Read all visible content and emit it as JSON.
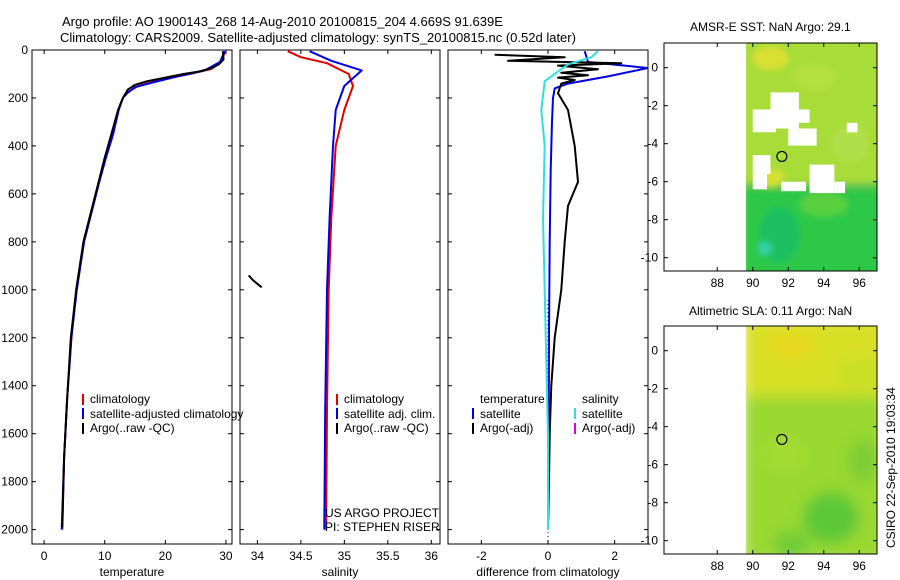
{
  "header": {
    "line1": "Argo profile: AO 1900143_268 14-Aug-2010 20100815_204 4.669S 91.639E",
    "line2": "Climatology: CARS2009. Satellite-adjusted climatology: synTS_20100815.nc (0.52d later)"
  },
  "colors": {
    "climatology": "#e00000",
    "satellite": "#0000e0",
    "argo": "#000000",
    "sat_salinity": "#30e0e0",
    "argo_salinity": "#e000e0"
  },
  "chart_data": [
    {
      "type": "line",
      "name": "temperature-profile",
      "xlabel": "temperature",
      "ylabel": "",
      "xlim": [
        -2,
        31
      ],
      "ylim": [
        2060,
        0
      ],
      "xticks": [
        0,
        10,
        20,
        30
      ],
      "yticks": [
        0,
        200,
        400,
        600,
        800,
        1000,
        1200,
        1400,
        1600,
        1800,
        2000
      ],
      "legend": [
        "climatology",
        "satellite-adjusted climatology",
        "Argo(..raw -QC)"
      ],
      "series": [
        {
          "name": "climatology",
          "color_key": "climatology",
          "x": [
            29.9,
            29.2,
            27.5,
            24,
            19,
            15.5,
            13.5,
            13,
            12.2,
            11.2,
            10,
            9,
            8,
            6.5,
            5.3,
            4.5,
            3.8,
            3.3,
            3
          ],
          "y": [
            5,
            50,
            80,
            100,
            125,
            150,
            180,
            200,
            250,
            350,
            450,
            550,
            650,
            800,
            1000,
            1200,
            1450,
            1700,
            2000
          ]
        },
        {
          "name": "satellite-adjusted climatology",
          "color_key": "satellite",
          "x": [
            29.8,
            29,
            26.5,
            22,
            18,
            15,
            13.7,
            13,
            12.3,
            11.4,
            10.2,
            9.1,
            8.1,
            6.6,
            5.4,
            4.5,
            3.8,
            3.3,
            2.9
          ],
          "y": [
            5,
            50,
            85,
            110,
            135,
            155,
            180,
            200,
            250,
            350,
            450,
            550,
            650,
            800,
            1000,
            1200,
            1450,
            1700,
            2000
          ]
        },
        {
          "name": "Argo",
          "color_key": "argo",
          "x": [
            29.5,
            29.6,
            28.8,
            27.7,
            25.5,
            23,
            20,
            17,
            15,
            13.8,
            13,
            12.2,
            11.1,
            10,
            9,
            8,
            6.5,
            5.3,
            4.4,
            3.8,
            3.3,
            3
          ],
          "y": [
            5,
            40,
            60,
            75,
            90,
            100,
            115,
            130,
            145,
            165,
            200,
            250,
            350,
            450,
            550,
            650,
            800,
            1000,
            1200,
            1450,
            1700,
            1990
          ]
        }
      ]
    },
    {
      "type": "line",
      "name": "salinity-profile",
      "xlabel": "salinity",
      "xlim": [
        33.8,
        36.1
      ],
      "ylim": [
        2060,
        0
      ],
      "xticks": [
        34,
        34.5,
        35,
        35.5,
        36
      ],
      "legend": [
        "climatology",
        "satellite adj. clim.",
        "Argo(..raw -QC)"
      ],
      "annotations": [
        "US ARGO PROJECT",
        "PI: STEPHEN RISER"
      ],
      "series": [
        {
          "name": "climatology",
          "color_key": "climatology",
          "x": [
            34.35,
            34.5,
            34.8,
            35.05,
            35.1,
            35.0,
            34.9,
            34.85,
            34.82,
            34.8,
            34.79
          ],
          "y": [
            5,
            30,
            55,
            100,
            150,
            250,
            400,
            700,
            1000,
            1500,
            2000
          ]
        },
        {
          "name": "satellite adj. clim.",
          "color_key": "satellite",
          "x": [
            34.6,
            34.85,
            35.2,
            35.0,
            34.9,
            34.87,
            34.83,
            34.8,
            34.78,
            34.77
          ],
          "y": [
            5,
            45,
            85,
            150,
            250,
            400,
            700,
            1000,
            1500,
            2000
          ]
        },
        {
          "name": "Argo",
          "color_key": "argo",
          "x": [
            33.9,
            33.95,
            34.0,
            34.05
          ],
          "y": [
            940,
            960,
            975,
            990
          ]
        }
      ]
    },
    {
      "type": "line",
      "name": "difference-profile",
      "xlabel": "difference from climatology",
      "xlim": [
        -3,
        3
      ],
      "ylim": [
        2060,
        0
      ],
      "xticks": [
        -2,
        0,
        2
      ],
      "legend_temperature": {
        "title": "temperature",
        "items": [
          "satellite",
          "Argo(-adj)"
        ]
      },
      "legend_salinity": {
        "title": "salinity",
        "items": [
          "satellite",
          "Argo(-adj)"
        ]
      },
      "series": [
        {
          "name": "temperature satellite",
          "color_key": "satellite",
          "x": [
            1.1,
            1.2,
            3.0,
            1.8,
            0.6,
            0.2,
            0.15,
            0.12,
            0.08,
            0.05,
            0.03,
            0.02,
            0.0
          ],
          "y": [
            5,
            50,
            75,
            110,
            140,
            160,
            200,
            300,
            500,
            800,
            1200,
            1600,
            2000
          ]
        },
        {
          "name": "temperature Argo",
          "color_key": "argo",
          "x": [
            -1.6,
            0.5,
            -1.2,
            2.2,
            0.3,
            1.5,
            0.4,
            1.2,
            0.3,
            0.8,
            0.4,
            0.3,
            0.6,
            0.8,
            0.9,
            0.6,
            0.5,
            0.4,
            0.2,
            0.1,
            0.05,
            0.03,
            0.0
          ],
          "y": [
            20,
            30,
            45,
            55,
            65,
            80,
            95,
            105,
            115,
            125,
            140,
            180,
            250,
            400,
            550,
            650,
            800,
            1000,
            1200,
            1400,
            1600,
            1800,
            1990
          ]
        },
        {
          "name": "salinity satellite",
          "color_key": "sat_salinity",
          "x": [
            1.5,
            1.3,
            0.6,
            0.3,
            -0.1,
            -0.2,
            -0.1,
            -0.15,
            -0.1,
            -0.05,
            0.0,
            0.0
          ],
          "y": [
            5,
            30,
            60,
            90,
            130,
            250,
            400,
            700,
            1000,
            1300,
            1600,
            2000
          ]
        }
      ]
    },
    {
      "type": "heatmap",
      "name": "amsr-sst-map",
      "title": "AMSR-E SST: NaN Argo: 29.1",
      "xlim": [
        85,
        97
      ],
      "ylim": [
        -10.7,
        1.3
      ],
      "xticks": [
        88,
        90,
        92,
        94,
        96
      ],
      "yticks": [
        0,
        -2,
        -4,
        -6,
        -8,
        -10
      ],
      "data_xmin": 90,
      "marker": {
        "lon": 91.64,
        "lat": -4.67
      }
    },
    {
      "type": "heatmap",
      "name": "altimetric-sla-map",
      "title": "Altimetric SLA: 0.11 Argo: NaN",
      "xlim": [
        85,
        97
      ],
      "ylim": [
        -10.7,
        1.3
      ],
      "xticks": [
        88,
        90,
        92,
        94,
        96
      ],
      "yticks": [
        0,
        -2,
        -4,
        -6,
        -8,
        -10
      ],
      "data_xmin": 90,
      "marker": {
        "lon": 91.64,
        "lat": -4.67
      }
    }
  ],
  "credit": "CSIRO 22-Sep-2010 19:03:34"
}
